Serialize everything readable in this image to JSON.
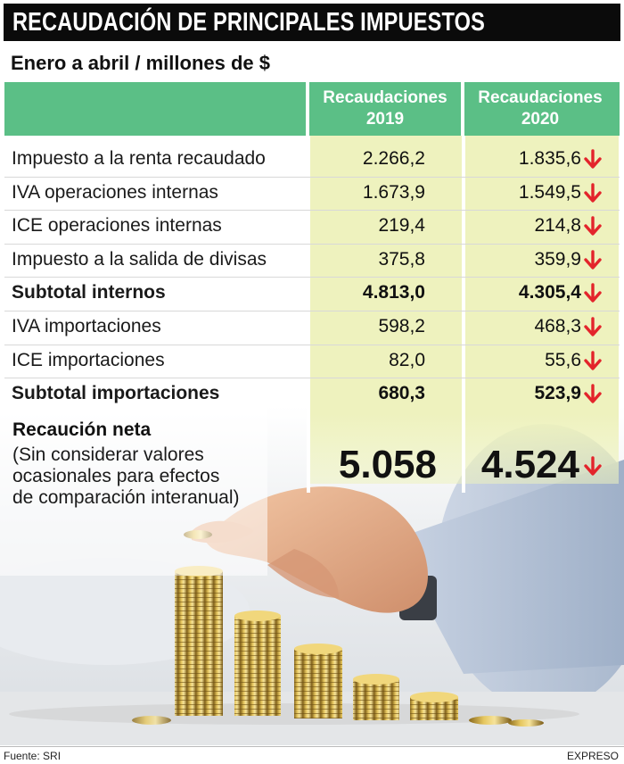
{
  "header": {
    "title": "RECAUDACIÓN DE PRINCIPALES IMPUESTOS",
    "subtitle": "Enero a abril / millones de $"
  },
  "columns": {
    "col1_line1": "Recaudaciones",
    "col1_line2": "2019",
    "col2_line1": "Recaudaciones",
    "col2_line2": "2020"
  },
  "rows": [
    {
      "label": "Impuesto a la renta recaudado",
      "v2019": "2.266,2",
      "v2020": "1.835,6"
    },
    {
      "label": "IVA operaciones internas",
      "v2019": "1.673,9",
      "v2020": "1.549,5"
    },
    {
      "label": "ICE operaciones internas",
      "v2019": "219,4",
      "v2020": "214,8"
    },
    {
      "label": "Impuesto a la salida de divisas",
      "v2019": "375,8",
      "v2020": "359,9"
    },
    {
      "label": "Subtotal internos",
      "v2019": "4.813,0",
      "v2020": "4.305,4"
    },
    {
      "label": "IVA importaciones",
      "v2019": "598,2",
      "v2020": "468,3"
    },
    {
      "label": "ICE importaciones",
      "v2019": "82,0",
      "v2020": "55,6"
    },
    {
      "label": "Subtotal importaciones",
      "v2019": "680,3",
      "v2020": "523,9"
    }
  ],
  "net": {
    "title": "Recaución neta",
    "note": "(Sin considerar valores ocasionales para efectos de comparación interanual)",
    "v2019": "5.058",
    "v2020": "4.524"
  },
  "footer": {
    "source": "Fuente: SRI",
    "brand": "EXPRESO"
  },
  "colors": {
    "header_green": "#5bbf86",
    "column_highlight": "#eef2be",
    "arrow_red": "#e3242b",
    "title_bg": "#0b0b0b"
  },
  "chart_data": {
    "type": "table",
    "title": "RECAUDACIÓN DE PRINCIPALES IMPUESTOS",
    "subtitle": "Enero a abril / millones de $",
    "columns": [
      "Recaudaciones 2019",
      "Recaudaciones 2020"
    ],
    "rows": [
      {
        "label": "Impuesto a la renta recaudado",
        "values": [
          2266.2,
          1835.6
        ]
      },
      {
        "label": "IVA operaciones internas",
        "values": [
          1673.9,
          1549.5
        ]
      },
      {
        "label": "ICE operaciones internas",
        "values": [
          219.4,
          214.8
        ]
      },
      {
        "label": "Impuesto a la salida de divisas",
        "values": [
          375.8,
          359.9
        ]
      },
      {
        "label": "Subtotal internos",
        "values": [
          4813.0,
          4305.4
        ]
      },
      {
        "label": "IVA importaciones",
        "values": [
          598.2,
          468.3
        ]
      },
      {
        "label": "ICE importaciones",
        "values": [
          82.0,
          55.6
        ]
      },
      {
        "label": "Subtotal importaciones",
        "values": [
          680.3,
          523.9
        ]
      },
      {
        "label": "Recaución neta",
        "values": [
          5058,
          4524
        ]
      }
    ],
    "trend_2020": "down"
  }
}
